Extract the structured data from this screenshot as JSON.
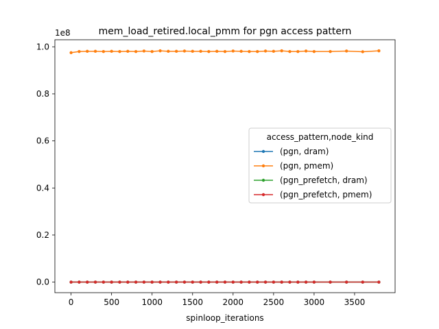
{
  "chart_data": {
    "type": "line",
    "title": "mem_load_retired.local_pmm for pgn access pattern",
    "xlabel": "spinloop_iterations",
    "ylabel": "",
    "y_offset_label": "1e8",
    "xlim": [
      -200,
      4000
    ],
    "ylim": [
      -4500000,
      103000000
    ],
    "x_ticks": [
      0,
      500,
      1000,
      1500,
      2000,
      2500,
      3000,
      3500
    ],
    "x_tick_labels": [
      "0",
      "500",
      "1000",
      "1500",
      "2000",
      "2500",
      "3000",
      "3500"
    ],
    "y_ticks": [
      0,
      20000000,
      40000000,
      60000000,
      80000000,
      100000000
    ],
    "y_tick_labels": [
      "0.0",
      "0.2",
      "0.4",
      "0.6",
      "0.8",
      "1.0"
    ],
    "grid": false,
    "legend": {
      "title": "access_pattern,node_kind",
      "placement": "center-right"
    },
    "x": [
      0,
      100,
      200,
      300,
      400,
      500,
      600,
      700,
      800,
      900,
      1000,
      1100,
      1200,
      1300,
      1400,
      1500,
      1600,
      1700,
      1800,
      1900,
      2000,
      2100,
      2200,
      2300,
      2400,
      2500,
      2600,
      2700,
      2800,
      2900,
      3000,
      3200,
      3400,
      3600,
      3800
    ],
    "series": [
      {
        "name": "(pgn, dram)",
        "color": "#1f77b4",
        "values": [
          0,
          0,
          0,
          0,
          0,
          0,
          0,
          0,
          0,
          0,
          0,
          0,
          0,
          0,
          0,
          0,
          0,
          0,
          0,
          0,
          0,
          0,
          0,
          0,
          0,
          0,
          0,
          0,
          0,
          0,
          0,
          0,
          0,
          0,
          0
        ]
      },
      {
        "name": "(pgn, pmem)",
        "color": "#ff7f0e",
        "values": [
          97500000,
          98000000,
          98100000,
          98100000,
          98000000,
          98100000,
          98000000,
          98100000,
          98000000,
          98200000,
          98000000,
          98300000,
          98100000,
          98100000,
          98200000,
          98100000,
          98100000,
          98000000,
          98100000,
          98000000,
          98200000,
          98100000,
          98000000,
          98000000,
          98200000,
          98100000,
          98300000,
          98000000,
          98000000,
          98200000,
          98000000,
          98000000,
          98200000,
          97900000,
          98300000
        ]
      },
      {
        "name": "(pgn_prefetch, dram)",
        "color": "#2ca02c",
        "values": [
          0,
          0,
          0,
          0,
          0,
          0,
          0,
          0,
          0,
          0,
          0,
          0,
          0,
          0,
          0,
          0,
          0,
          0,
          0,
          0,
          0,
          0,
          0,
          0,
          0,
          0,
          0,
          0,
          0,
          0,
          0,
          0,
          0,
          0,
          0
        ]
      },
      {
        "name": "(pgn_prefetch, pmem)",
        "color": "#d62728",
        "values": [
          0,
          0,
          0,
          0,
          0,
          0,
          0,
          0,
          0,
          0,
          0,
          0,
          0,
          0,
          0,
          0,
          0,
          0,
          0,
          0,
          0,
          0,
          0,
          0,
          0,
          0,
          0,
          0,
          0,
          0,
          0,
          0,
          0,
          0,
          0
        ]
      }
    ]
  }
}
